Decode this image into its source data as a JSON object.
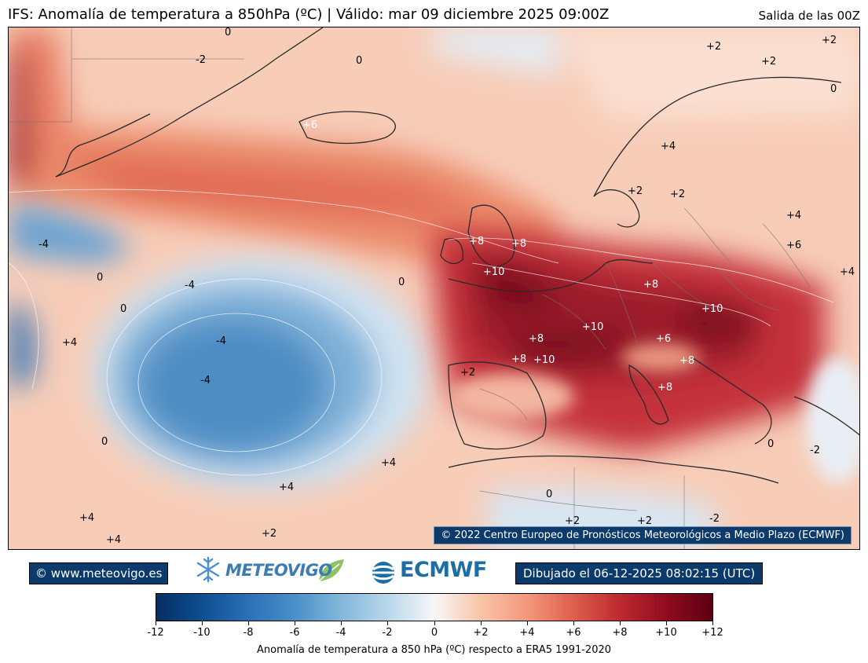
{
  "header": {
    "title": "IFS: Anomalía de temperatura a 850hPa  (ºC) | Válido: mar 09 diciembre 2025 09:00Z",
    "run": "Salida de las 00Z"
  },
  "map": {
    "copyright": "© 2022 Centro Europeo de Pronósticos Meteorológicos a Medio Plazo (ECMWF)",
    "contour_labels": [
      "0",
      "+2",
      "+2",
      "+2",
      "-2",
      "0",
      "+6",
      "+4",
      "+2",
      "+2",
      "+4",
      "+6",
      "+4",
      "+8",
      "+8",
      "+10",
      "+8",
      "+10",
      "+10",
      "+6",
      "+8",
      "+8",
      "+8",
      "+10",
      "+8",
      "+2",
      "-4",
      "0",
      "0",
      "-4",
      "-4",
      "-4",
      "+4",
      "0",
      "0",
      "+4",
      "+4",
      "+4",
      "+4",
      "+2",
      "0",
      "+2",
      "+2",
      "-2",
      "0",
      "-2",
      "0"
    ]
  },
  "footer": {
    "site": "© www.meteovigo.es",
    "meteovigo_logo": "METEOVIGO",
    "ecmwf_logo": "ECMWF",
    "drawn": "Dibujado el 06-12-2025 08:02:15 (UTC)"
  },
  "colorbar": {
    "ticks": [
      "-12",
      "-10",
      "-8",
      "-6",
      "-4",
      "-2",
      "0",
      "+2",
      "+4",
      "+6",
      "+8",
      "+10",
      "+12"
    ],
    "caption": "Anomalía de temperatura a 850 hPa (ºC) respecto a ERA5 1991-2020",
    "colors": [
      "#062e62",
      "#0d4d8f",
      "#2c72b8",
      "#4a90c8",
      "#81b6da",
      "#bcd8ec",
      "#f7f7f7",
      "#f9c6ab",
      "#f2967a",
      "#de5f4d",
      "#bf2b30",
      "#8f0b1e",
      "#5c0012"
    ]
  }
}
